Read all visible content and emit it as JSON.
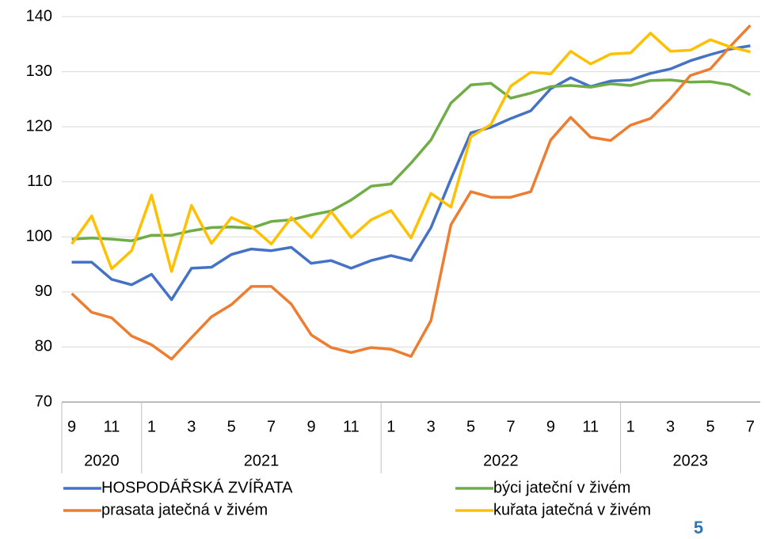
{
  "chart_data": {
    "type": "line",
    "categories": [
      "9",
      null,
      "11",
      null,
      "1",
      null,
      "3",
      null,
      "5",
      null,
      "7",
      null,
      "9",
      null,
      "11",
      null,
      "1",
      null,
      "3",
      null,
      "5",
      null,
      "7",
      null,
      "9",
      null,
      "11",
      null,
      "1",
      null,
      "3",
      null,
      "5",
      null,
      "7"
    ],
    "category_years": [
      "2020",
      "2020",
      "2020",
      "2020",
      "2021",
      "2021",
      "2021",
      "2021",
      "2021",
      "2021",
      "2021",
      "2021",
      "2021",
      "2021",
      "2021",
      "2021",
      "2022",
      "2022",
      "2022",
      "2022",
      "2022",
      "2022",
      "2022",
      "2022",
      "2022",
      "2022",
      "2022",
      "2022",
      "2023",
      "2023",
      "2023",
      "2023",
      "2023",
      "2023",
      "2023"
    ],
    "ylim": [
      70,
      140
    ],
    "yticks": [
      70,
      80,
      90,
      100,
      110,
      120,
      130,
      140
    ],
    "grid": true,
    "series": [
      {
        "name": "HOSPODÁŘSKÁ ZVÍŘATA",
        "color": "#4472c4",
        "values": [
          95.4,
          95.4,
          92.3,
          91.3,
          93.2,
          88.6,
          94.3,
          94.5,
          96.8,
          97.8,
          97.5,
          98.1,
          95.2,
          95.7,
          94.3,
          95.7,
          96.6,
          95.7,
          101.7,
          110.5,
          118.9,
          119.9,
          121.5,
          122.9,
          126.9,
          128.9,
          127.3,
          128.3,
          128.5,
          129.7,
          130.5,
          132.0,
          133.1,
          134.1,
          134.7
        ]
      },
      {
        "name": "býci jateční v živém",
        "color": "#70ad47",
        "values": [
          99.6,
          99.8,
          99.6,
          99.3,
          100.3,
          100.3,
          101.1,
          101.7,
          101.8,
          101.6,
          102.8,
          103.1,
          104.0,
          104.7,
          106.7,
          109.2,
          109.6,
          113.4,
          117.6,
          124.3,
          127.6,
          127.9,
          125.2,
          126.1,
          127.3,
          127.5,
          127.2,
          127.8,
          127.5,
          128.4,
          128.5,
          128.1,
          128.2,
          127.6,
          125.8
        ]
      },
      {
        "name": "prasata jatečná v živém",
        "color": "#ed7d31",
        "values": [
          89.7,
          86.3,
          85.3,
          82.0,
          80.4,
          77.8,
          81.7,
          85.5,
          87.7,
          91.0,
          91.0,
          87.8,
          82.2,
          79.9,
          79.0,
          79.9,
          79.6,
          78.3,
          84.8,
          102.2,
          108.2,
          107.2,
          107.2,
          108.2,
          117.6,
          121.7,
          118.1,
          117.5,
          120.3,
          121.5,
          125.1,
          129.3,
          130.5,
          134.6,
          138.4
        ]
      },
      {
        "name": "kuřata jatečná v živém",
        "color": "#ffc000",
        "values": [
          98.7,
          103.8,
          94.2,
          97.5,
          107.6,
          93.7,
          105.7,
          98.8,
          103.5,
          101.9,
          98.7,
          103.5,
          99.9,
          104.6,
          99.9,
          103.1,
          104.8,
          99.8,
          107.9,
          105.4,
          118.2,
          120.4,
          127.4,
          129.9,
          129.6,
          133.7,
          131.4,
          133.2,
          133.4,
          137.0,
          133.7,
          133.9,
          135.8,
          134.5,
          133.6
        ]
      }
    ],
    "page_number": "5"
  }
}
